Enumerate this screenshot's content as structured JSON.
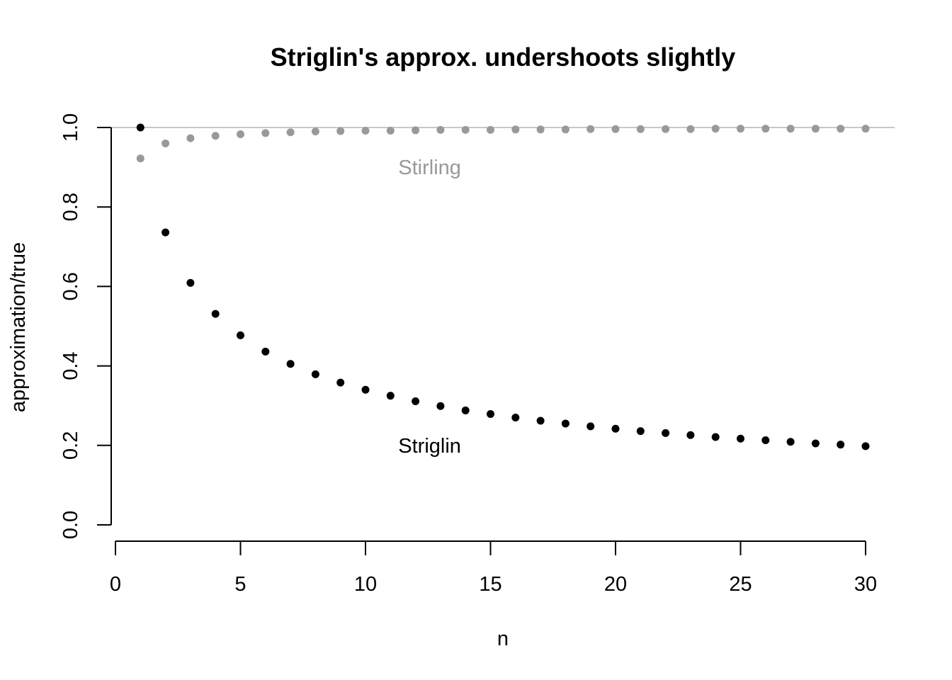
{
  "chart_data": {
    "type": "scatter",
    "title": "Striglin's approx. undershoots slightly",
    "xlabel": "n",
    "ylabel": "approximation/true",
    "xlim": [
      0,
      30
    ],
    "ylim": [
      0,
      1.0
    ],
    "x_ticks": [
      "0",
      "5",
      "10",
      "15",
      "20",
      "25",
      "30"
    ],
    "y_ticks": [
      "0.0",
      "0.2",
      "0.4",
      "0.6",
      "0.8",
      "1.0"
    ],
    "reference_line": {
      "y": 1.0,
      "color": "#c8c8c8"
    },
    "x": [
      1,
      2,
      3,
      4,
      5,
      6,
      7,
      8,
      9,
      10,
      11,
      12,
      13,
      14,
      15,
      16,
      17,
      18,
      19,
      20,
      21,
      22,
      23,
      24,
      25,
      26,
      27,
      28,
      29,
      30
    ],
    "series": [
      {
        "name": "Stirling",
        "color": "#999999",
        "label_at": [
          12,
          0.9
        ],
        "values": [
          0.922,
          0.96,
          0.973,
          0.979,
          0.983,
          0.986,
          0.988,
          0.99,
          0.991,
          0.992,
          0.992,
          0.993,
          0.994,
          0.994,
          0.994,
          0.995,
          0.995,
          0.995,
          0.996,
          0.996,
          0.996,
          0.996,
          0.996,
          0.997,
          0.997,
          0.997,
          0.997,
          0.997,
          0.997,
          0.997
        ]
      },
      {
        "name": "Striglin",
        "color": "#000000",
        "label_at": [
          12,
          0.2
        ],
        "values": [
          1.0,
          0.736,
          0.609,
          0.531,
          0.477,
          0.436,
          0.405,
          0.379,
          0.358,
          0.34,
          0.325,
          0.311,
          0.299,
          0.288,
          0.279,
          0.27,
          0.262,
          0.255,
          0.248,
          0.242,
          0.236,
          0.231,
          0.226,
          0.221,
          0.217,
          0.213,
          0.209,
          0.205,
          0.202,
          0.198
        ]
      }
    ],
    "grid": false,
    "legend": "none"
  }
}
